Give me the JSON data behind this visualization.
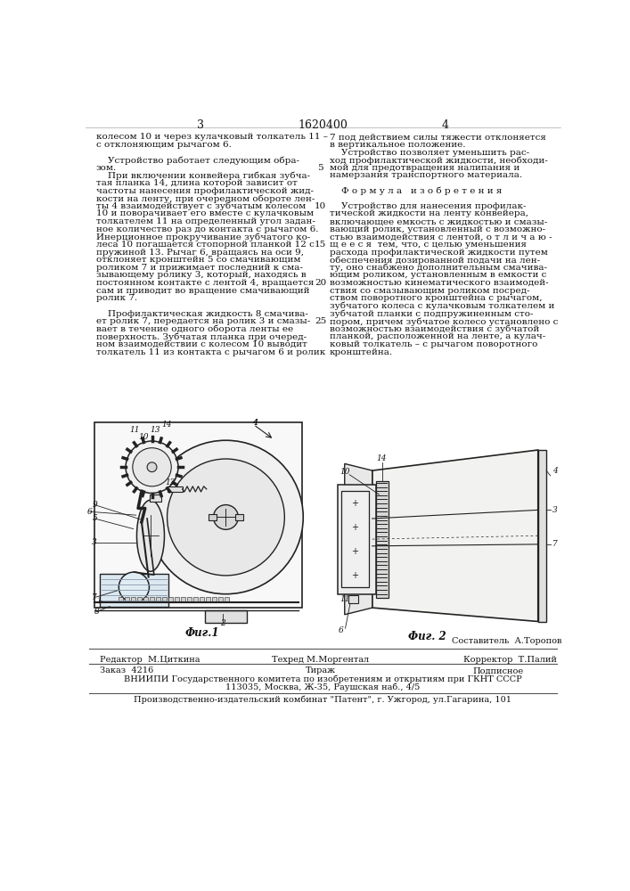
{
  "page_color": "#ffffff",
  "header_left_page": "3",
  "header_center": "1620400",
  "header_right_page": "4",
  "fig1_caption": "Фuг.1",
  "fig2_caption": "Фuг. 2",
  "editor_label": "Редактор",
  "editor_name": "М.Циткина",
  "techred_label": "Техред",
  "techred_name": "М.Моргентал",
  "corrector_label": "Корректор",
  "corrector_name": "Т.Палий",
  "sostavitel_label": "Составитель",
  "sostavitel_name": "А.Торопов",
  "order_label": "Заказ",
  "order_num": "4216",
  "tirazh_label": "Тираж",
  "podpisnoe_label": "Подписное",
  "vniiipi_line1": "ВНИИПИ Государственного комитета по изобретениям и открытиям при ГКНТ СССР",
  "vniiipi_line2": "113035, Москва, Ж-35, Раушская наб., 4/5",
  "publisher_line": "Производственно-издательский комбинат \"Патент\", г. Ужгород, ул.Гагарина, 101",
  "text_color": "#111111",
  "line_color": "#444444",
  "draw_color": "#222222",
  "font_size_body": 7.5,
  "font_size_header": 9.0,
  "font_size_small": 7.0,
  "font_size_fig": 7.5,
  "left_col_lines": [
    "колесом 10 и через кулачковый толкатель 11 –",
    "с отклоняющим рычагом 6.",
    "",
    "    Устройство работает следующим обра-",
    "зом.",
    "    При включении конвейера гибкая зубча-",
    "тая планка 14, длина которой зависит от",
    "частоты нанесения профилактической жид-",
    "кости на ленту, при очередном обороте лен-",
    "ты 4 взаимодействует с зубчатым колесом",
    "10 и поворачивает его вместе с кулачковым",
    "толкателем 11 на определенный угол задан-",
    "ное количество раз до контакта с рычагом 6.",
    "Инерционное прокручивание зубчатого ко-",
    "леса 10 погашается стопорной планкой 12 с",
    "пружиной 13. Рычаг 6, вращаясь на оси 9,",
    "отклоняет кронштейн 5 со смачивающим",
    "роликом 7 и прижимает последний к сма-",
    "зывающему ролику 3, который, находясь в",
    "постоянном контакте с лентой 4, вращается",
    "сам и приводит во вращение смачивающий",
    "ролик 7.",
    "",
    "    Профилактическая жидкость 8 смачива-",
    "ет ролик 7, передается на ролик 3 и смазы-",
    "вает в течение одного оборота ленты ее",
    "поверхность. Зубчатая планка при очеред-",
    "ном взаимодействии с колесом 10 выводит",
    "толкатель 11 из контакта с рычагом 6 и ролик"
  ],
  "right_col_lines": [
    "7 под действием силы тяжести отклоняется",
    "в вертикальное положение.",
    "    Устройство позволяет уменьшить рас-",
    "ход профилактической жидкости, необходи-",
    "мой для предотвращения налипания и",
    "намерзания транспортного материала.",
    "",
    "    Ф о р м у л а   и з о б р е т е н и я",
    "",
    "    Устройство для нанесения профилак-",
    "тической жидкости на ленту конвейера,",
    "включающее емкость с жидкостью и смазы-",
    "вающий ролик, установленный с возможно-",
    "стью взаимодействия с лентой, о т л и ч а ю -",
    "щ е е с я  тем, что, с целью уменьшения",
    "расхода профилактической жидкости путем",
    "обеспечения дозированной подачи на лен-",
    "ту, оно снабжено дополнительным смачива-",
    "ющим роликом, установленным в емкости с",
    "возможностью кинематического взаимодей-",
    "ствия со смазывающим роликом посред-",
    "ством поворотного кронштейна с рычагом,",
    "зубчатого колеса с кулачковым толкателем и",
    "зубчатой планки с подпружиненным сто-",
    "пором, причем зубчатое колесо установлено с",
    "возможностью взаимодействия с зубчатой",
    "планкой, расположенной на ленте, а кулач-",
    "ковый толкатель – с рычагом поворотного",
    "кронштейна."
  ],
  "line_numbers": [
    5,
    10,
    15,
    20,
    25
  ],
  "line_number_rows": [
    4,
    9,
    14,
    19,
    24
  ]
}
